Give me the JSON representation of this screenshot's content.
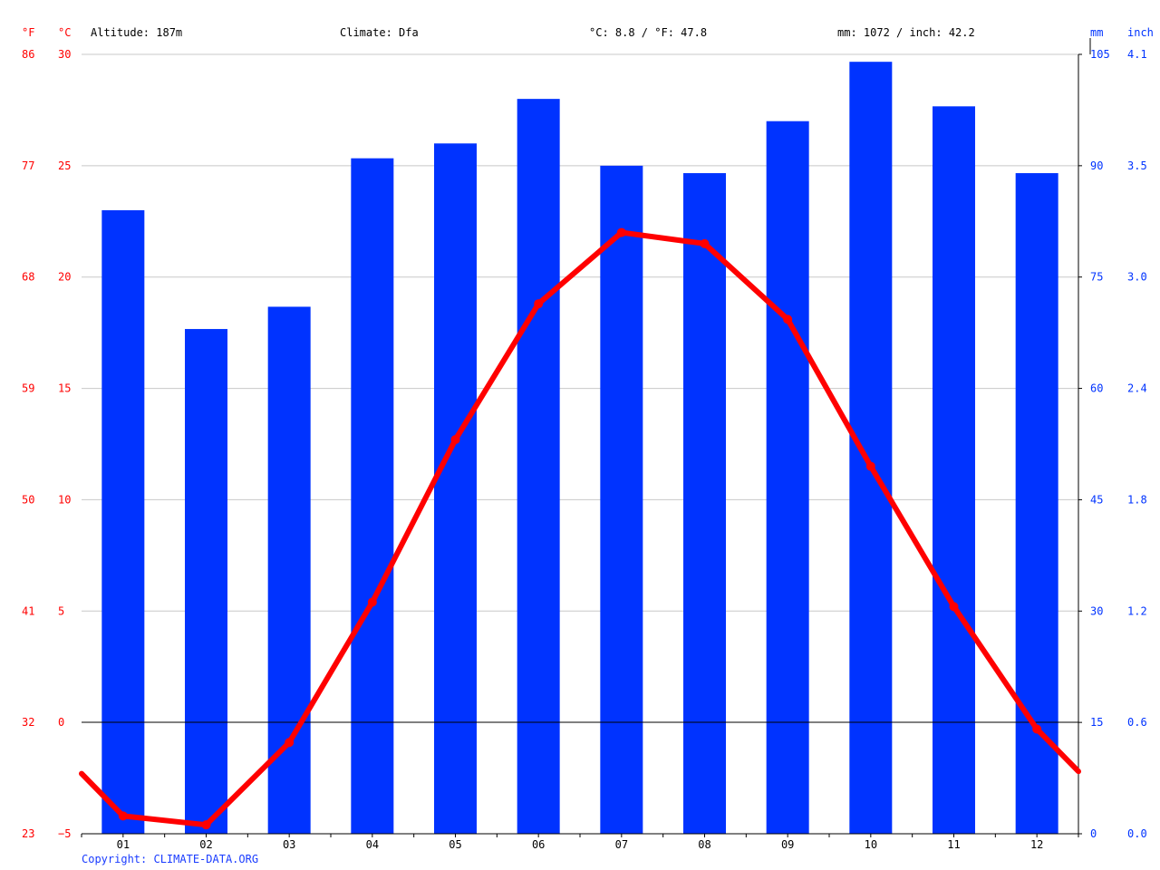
{
  "header": {
    "altitude": "Altitude: 187m",
    "climate": "Climate: Dfa",
    "avg_temp": "°C: 8.8 / °F: 47.8",
    "precip_total": "mm: 1072 / inch: 42.2"
  },
  "axes": {
    "left_f_unit": "°F",
    "left_c_unit": "°C",
    "right_mm_unit": "mm",
    "right_inch_unit": "inch",
    "fahrenheit_ticks": [
      "86",
      "77",
      "68",
      "59",
      "50",
      "41",
      "32",
      "23"
    ],
    "celsius_ticks": [
      "30",
      "25",
      "20",
      "15",
      "10",
      "5",
      "0",
      "−5"
    ],
    "mm_ticks": [
      "105",
      "90",
      "75",
      "60",
      "45",
      "30",
      "15",
      "0"
    ],
    "inch_ticks": [
      "4.1",
      "3.5",
      "3.0",
      "2.4",
      "1.8",
      "1.2",
      "0.6",
      "0.0"
    ]
  },
  "footer": {
    "copyright": "Copyright: CLIMATE-DATA.ORG"
  },
  "colors": {
    "temperature": "#ff0000",
    "precipitation": "#0033ff",
    "zero_line": "#000000",
    "grid": "#c8c8c8"
  },
  "chart_data": {
    "type": "bar+line",
    "categories": [
      "01",
      "02",
      "03",
      "04",
      "05",
      "06",
      "07",
      "08",
      "09",
      "10",
      "11",
      "12"
    ],
    "precipitation_mm": [
      84,
      68,
      71,
      91,
      93,
      99,
      90,
      89,
      96,
      104,
      98,
      89
    ],
    "temperature_c": [
      -4.2,
      -4.6,
      -0.9,
      5.4,
      12.7,
      18.8,
      22.0,
      21.5,
      18.1,
      11.5,
      5.2,
      -0.3
    ],
    "temperature_line_start_c": -2.3,
    "temperature_line_end_c": -2.2,
    "celsius_range": [
      -5,
      30
    ],
    "mm_range": [
      0,
      105
    ],
    "grid": true
  }
}
